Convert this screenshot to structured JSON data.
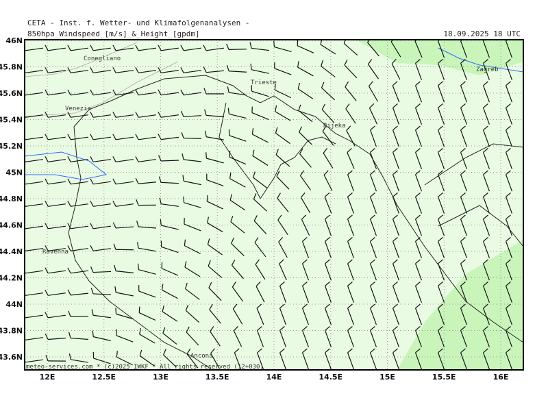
{
  "header": {
    "institute": "CETA - Inst. f. Wetter- und Klimafolgenanalysen -",
    "title": "850hpa_Windspeed_[m/s]_&_Height_[gpdm]",
    "valid_time": "18.09.2025 18 UTC"
  },
  "axes": {
    "lat": [
      "46N",
      "45.8N",
      "45.6N",
      "45.4N",
      "45.2N",
      "45N",
      "44.8N",
      "44.6N",
      "44.4N",
      "44.2N",
      "44N",
      "43.8N",
      "43.6N"
    ],
    "lon": [
      "12E",
      "12.5E",
      "13E",
      "13.5E",
      "14E",
      "14.5E",
      "15E",
      "15.5E",
      "16E"
    ]
  },
  "places": [
    "Conegliano",
    "Venezia",
    "Trieste",
    "Rijeka",
    "Zagreb",
    "Ravenna",
    "Ancona"
  ],
  "footer": "meteo-services.com * (c)2025 IWKF * All rights reserved (12+030)"
}
